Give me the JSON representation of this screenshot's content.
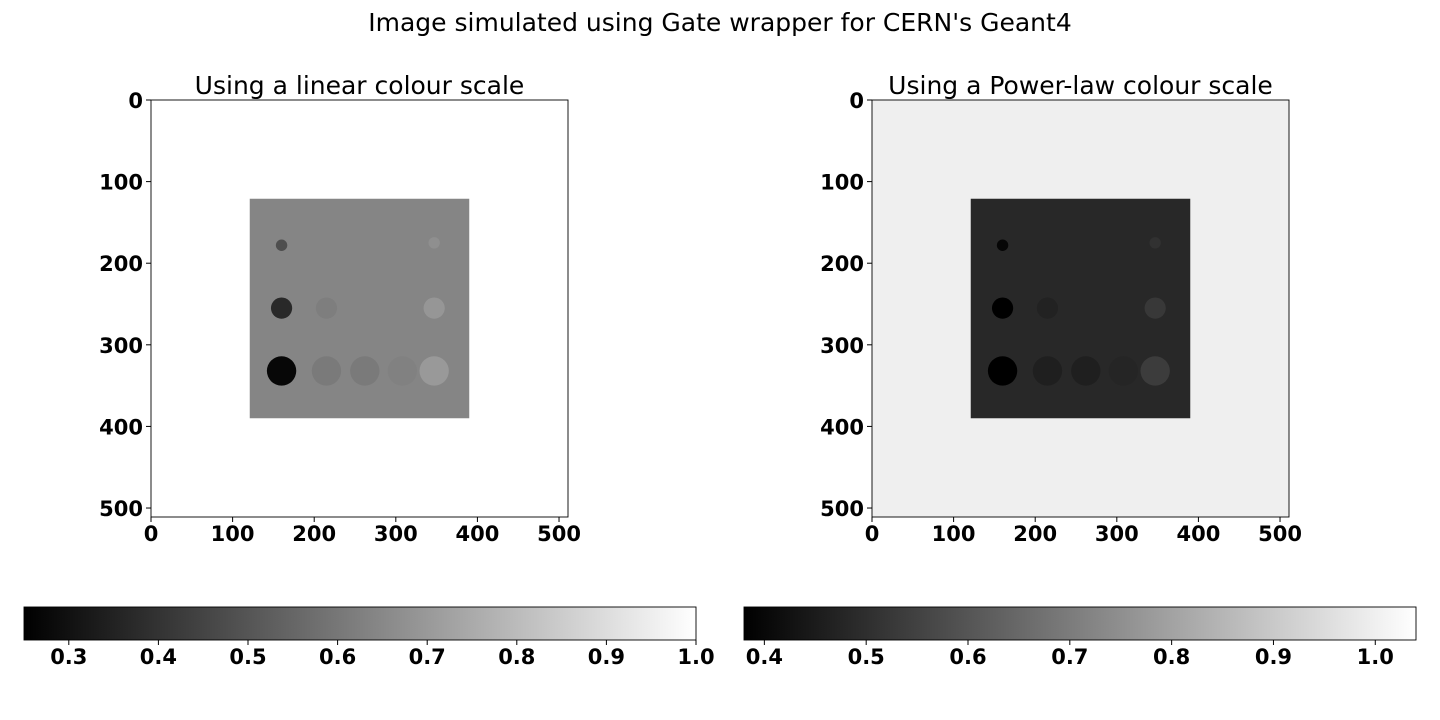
{
  "figure": {
    "suptitle": "Image simulated using Gate wrapper for CERN's Geant4"
  },
  "chart_data": [
    {
      "type": "heatmap",
      "title": "Using a linear colour scale",
      "colormap": "gray",
      "scale": "linear",
      "xlim": [
        0,
        511
      ],
      "ylim": [
        511,
        0
      ],
      "xticks": [
        0,
        100,
        200,
        300,
        400,
        500
      ],
      "yticks": [
        0,
        100,
        200,
        300,
        400,
        500
      ],
      "xlabel": "",
      "ylabel": "",
      "image": {
        "background_value": 1.0,
        "phantom": {
          "x0": 121,
          "x1": 390,
          "y0": 121,
          "y1": 390,
          "value": 0.64
        },
        "spheres": [
          {
            "cx": 160,
            "cy": 178,
            "r": 7,
            "value": 0.48
          },
          {
            "cx": 160,
            "cy": 255,
            "r": 13,
            "value": 0.37
          },
          {
            "cx": 160,
            "cy": 332,
            "r": 18,
            "value": 0.27
          },
          {
            "cx": 215,
            "cy": 255,
            "r": 13,
            "value": 0.62
          },
          {
            "cx": 215,
            "cy": 332,
            "r": 18,
            "value": 0.61
          },
          {
            "cx": 262,
            "cy": 332,
            "r": 18,
            "value": 0.61
          },
          {
            "cx": 308,
            "cy": 332,
            "r": 18,
            "value": 0.63
          },
          {
            "cx": 347,
            "cy": 175,
            "r": 7,
            "value": 0.67
          },
          {
            "cx": 347,
            "cy": 255,
            "r": 13,
            "value": 0.69
          },
          {
            "cx": 347,
            "cy": 332,
            "r": 18,
            "value": 0.7
          }
        ]
      },
      "colorbar": {
        "orientation": "horizontal",
        "range": [
          0.25,
          1.0
        ],
        "ticks": [
          0.3,
          0.4,
          0.5,
          0.6,
          0.7,
          0.8,
          0.9,
          1.0
        ],
        "tick_labels": [
          "0.3",
          "0.4",
          "0.5",
          "0.6",
          "0.7",
          "0.8",
          "0.9",
          "1.0"
        ]
      }
    },
    {
      "type": "heatmap",
      "title": "Using a Power-law colour scale",
      "colormap": "gray",
      "scale": "power-law",
      "xlim": [
        0,
        511
      ],
      "ylim": [
        511,
        0
      ],
      "xticks": [
        0,
        100,
        200,
        300,
        400,
        500
      ],
      "yticks": [
        0,
        100,
        200,
        300,
        400,
        500
      ],
      "xlabel": "",
      "ylabel": "",
      "image": {
        "background_value": 1.0,
        "phantom": {
          "x0": 121,
          "x1": 390,
          "y0": 121,
          "y1": 390,
          "value": 0.64
        },
        "spheres": [
          {
            "cx": 160,
            "cy": 178,
            "r": 7,
            "value": 0.48
          },
          {
            "cx": 160,
            "cy": 255,
            "r": 13,
            "value": 0.37
          },
          {
            "cx": 160,
            "cy": 332,
            "r": 18,
            "value": 0.27
          },
          {
            "cx": 215,
            "cy": 255,
            "r": 13,
            "value": 0.62
          },
          {
            "cx": 215,
            "cy": 332,
            "r": 18,
            "value": 0.61
          },
          {
            "cx": 262,
            "cy": 332,
            "r": 18,
            "value": 0.61
          },
          {
            "cx": 308,
            "cy": 332,
            "r": 18,
            "value": 0.63
          },
          {
            "cx": 347,
            "cy": 175,
            "r": 7,
            "value": 0.67
          },
          {
            "cx": 347,
            "cy": 255,
            "r": 13,
            "value": 0.69
          },
          {
            "cx": 347,
            "cy": 332,
            "r": 18,
            "value": 0.7
          }
        ]
      },
      "colorbar": {
        "orientation": "horizontal",
        "range": [
          0.38,
          1.04
        ],
        "ticks": [
          0.4,
          0.5,
          0.6,
          0.7,
          0.8,
          0.9,
          1.0
        ],
        "tick_labels": [
          "0.4",
          "0.5",
          "0.6",
          "0.7",
          "0.8",
          "0.9",
          "1.0"
        ]
      }
    }
  ]
}
